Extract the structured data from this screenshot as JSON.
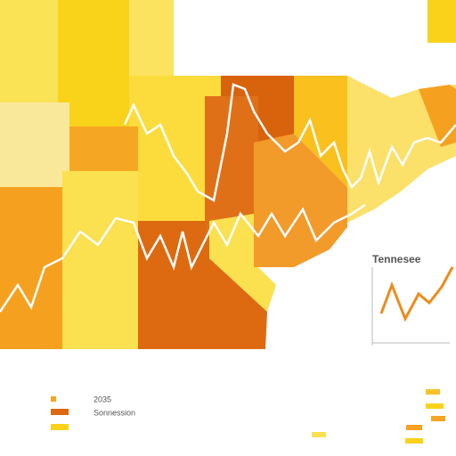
{
  "inset": {
    "title": "Tennesee"
  },
  "legend": {
    "items": [
      {
        "label": "2035"
      },
      {
        "label": "Sonnession"
      }
    ]
  }
}
